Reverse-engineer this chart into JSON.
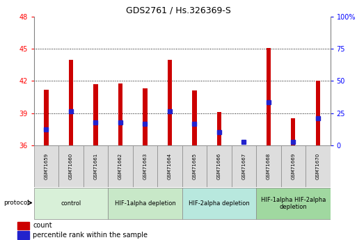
{
  "title": "GDS2761 / Hs.326369-S",
  "samples": [
    "GSM71659",
    "GSM71660",
    "GSM71661",
    "GSM71662",
    "GSM71663",
    "GSM71664",
    "GSM71665",
    "GSM71666",
    "GSM71667",
    "GSM71668",
    "GSM71669",
    "GSM71670"
  ],
  "red_tops": [
    41.2,
    44.0,
    41.7,
    41.8,
    41.3,
    44.0,
    41.1,
    39.1,
    36.0,
    45.1,
    38.5,
    42.0
  ],
  "blue_vals": [
    37.5,
    39.2,
    38.1,
    38.1,
    38.0,
    39.2,
    38.0,
    37.2,
    36.3,
    40.0,
    36.3,
    38.5
  ],
  "baseline": 36,
  "ylim_left": [
    36,
    48
  ],
  "ylim_right": [
    0,
    100
  ],
  "yticks_left": [
    36,
    39,
    42,
    45,
    48
  ],
  "yticks_right": [
    0,
    25,
    50,
    75,
    100
  ],
  "ytick_labels_right": [
    "0",
    "25",
    "50",
    "75",
    "100%"
  ],
  "red_color": "#cc0000",
  "blue_color": "#2222cc",
  "bar_width": 0.18,
  "groups": [
    {
      "label": "control",
      "xstart": 0,
      "xend": 3,
      "color": "#d8f0d8"
    },
    {
      "label": "HIF-1alpha depletion",
      "xstart": 3,
      "xend": 6,
      "color": "#c8e8c8"
    },
    {
      "label": "HIF-2alpha depletion",
      "xstart": 6,
      "xend": 9,
      "color": "#b8e8de"
    },
    {
      "label": "HIF-1alpha HIF-2alpha\ndepletion",
      "xstart": 9,
      "xend": 12,
      "color": "#a0d8a0"
    }
  ],
  "legend_red": "count",
  "legend_blue": "percentile rank within the sample",
  "protocol_label": "protocol",
  "title_fontsize": 9,
  "tick_fontsize": 7,
  "sample_fontsize": 5,
  "group_fontsize": 6
}
